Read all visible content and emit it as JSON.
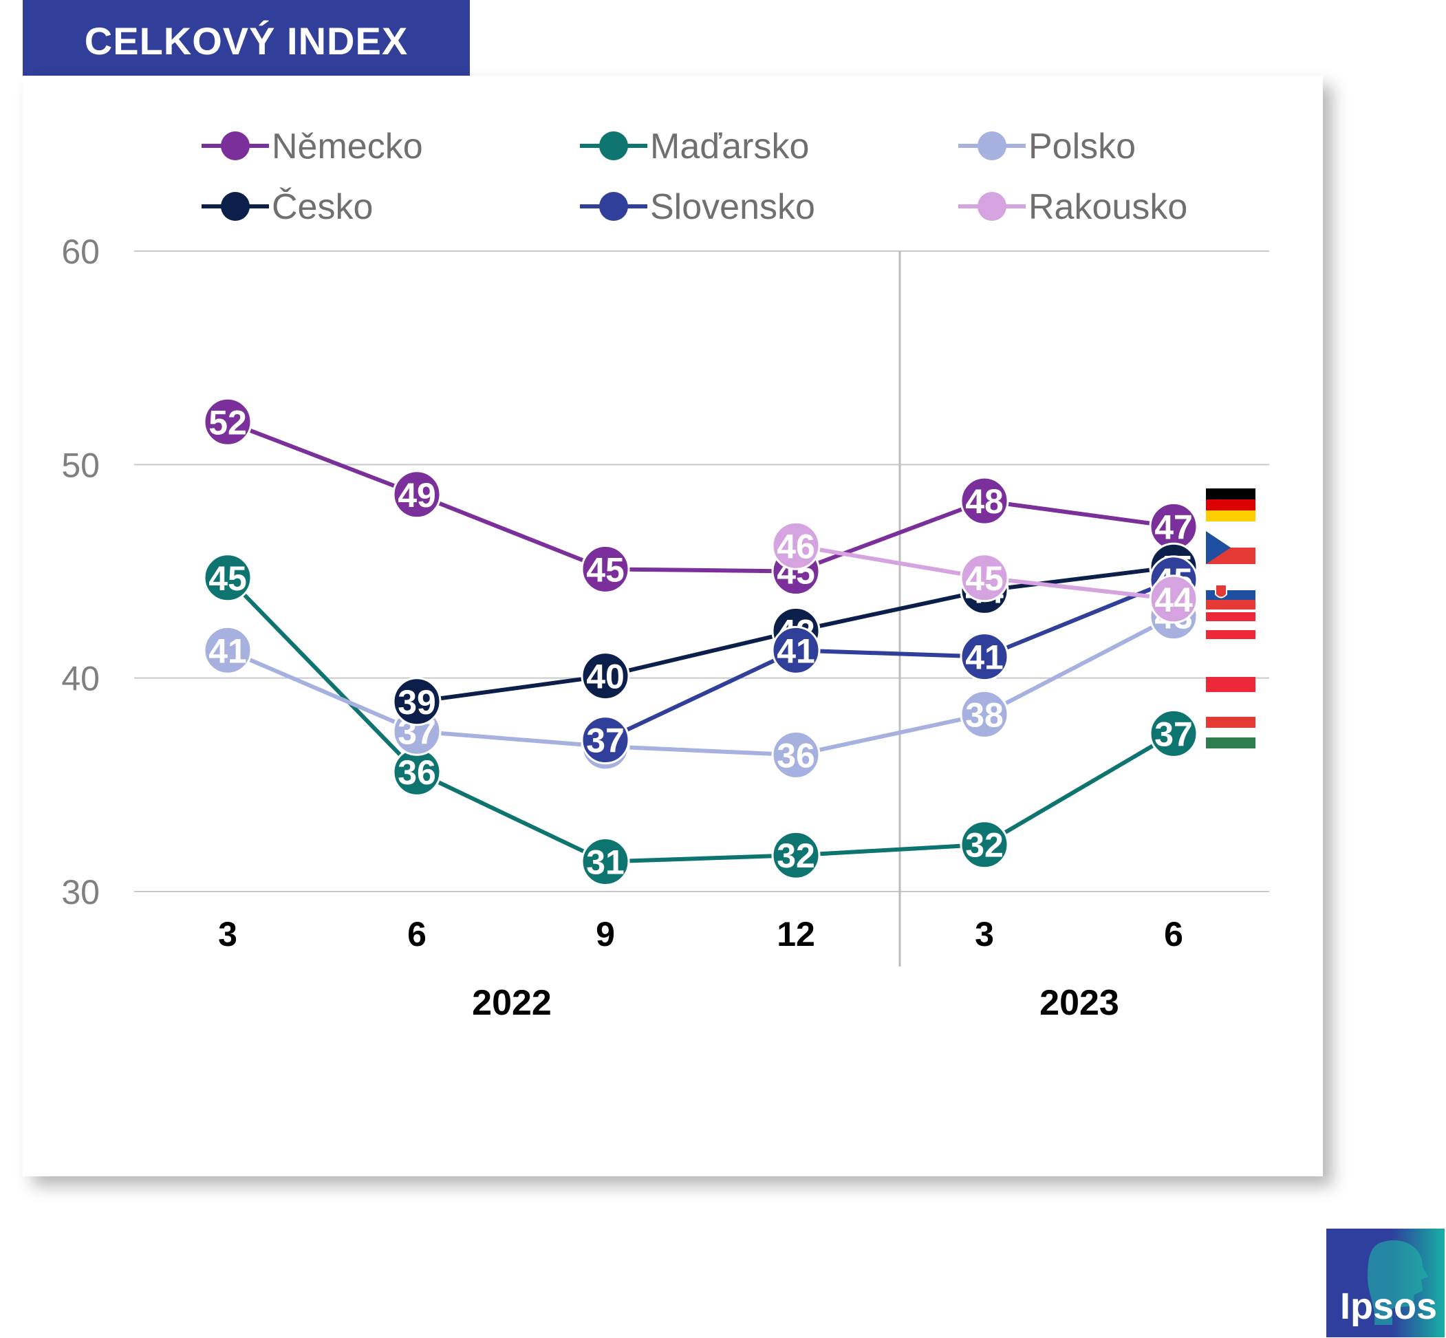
{
  "header": {
    "title": "CELKOVÝ INDEX"
  },
  "logo": {
    "text": "Ipsos"
  },
  "chart_data": {
    "type": "line",
    "ylim": [
      30,
      60
    ],
    "yticks": [
      30,
      40,
      50,
      60
    ],
    "x_labels": [
      "3",
      "6",
      "9",
      "12",
      "3",
      "6"
    ],
    "year_labels": [
      "2022",
      "2023"
    ],
    "legend_placement": "top",
    "grid": true,
    "series": [
      {
        "name": "Německo",
        "color": "#7b2f9b",
        "values": [
          52,
          48.6,
          45.1,
          45,
          48.3,
          47.1
        ],
        "labels": [
          "52",
          "49",
          "45",
          "45",
          "48",
          "47"
        ]
      },
      {
        "name": "Maďarsko",
        "color": "#0e7470",
        "values": [
          44.7,
          35.6,
          31.4,
          31.7,
          32.2,
          37.4
        ],
        "labels": [
          "45",
          "36",
          "31",
          "32",
          "32",
          "37"
        ]
      },
      {
        "name": "Polsko",
        "color": "#a6b1e0",
        "values": [
          41.3,
          37.5,
          36.8,
          36.4,
          38.3,
          42.9
        ],
        "labels": [
          "41",
          "37",
          "37",
          "36",
          "38",
          "43"
        ]
      },
      {
        "name": "Česko",
        "color": "#0b1f4a",
        "values": [
          null,
          38.9,
          40.1,
          42.2,
          44.1,
          45.2
        ],
        "labels": [
          "",
          "39",
          "40",
          "42",
          "44",
          "45"
        ]
      },
      {
        "name": "Slovensko",
        "color": "#2f3f9a",
        "values": [
          null,
          null,
          37.1,
          41.3,
          41.0,
          44.6
        ],
        "labels": [
          "",
          "",
          "37",
          "41",
          "41",
          "45"
        ]
      },
      {
        "name": "Rakousko",
        "color": "#d4a3e0",
        "values": [
          null,
          null,
          null,
          46.2,
          44.7,
          43.7
        ],
        "labels": [
          "",
          "",
          "",
          "46",
          "45",
          "44"
        ]
      }
    ]
  }
}
